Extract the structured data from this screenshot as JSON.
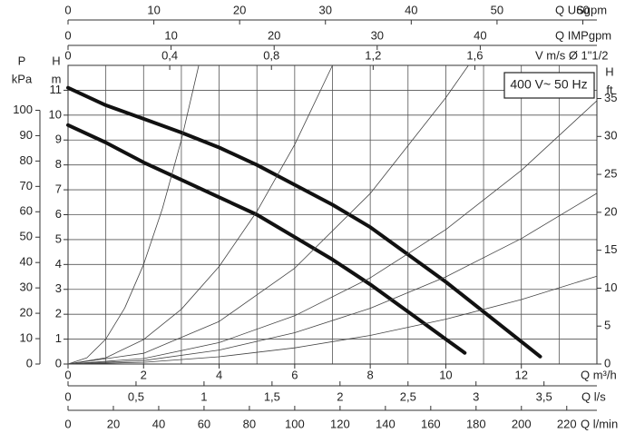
{
  "chart_data": {
    "type": "line",
    "annotation": "400 V~ 50 Hz",
    "grid": true,
    "grid_x": [
      0,
      1,
      2,
      3,
      4,
      5,
      6,
      7,
      8,
      9,
      10,
      11,
      12,
      13,
      14
    ],
    "grid_y": [
      0,
      1,
      2,
      3,
      4,
      5,
      6,
      7,
      8,
      9,
      10,
      11
    ],
    "x_axes": [
      {
        "label": "Q m³/h",
        "xlim": [
          0,
          14
        ],
        "xticks": [
          0,
          2,
          4,
          6,
          8,
          10,
          12
        ]
      },
      {
        "label": "Q l/s",
        "xlim": [
          0,
          3.889
        ],
        "xticks": [
          0,
          {
            "value": 0.5,
            "label": "0,5"
          },
          1,
          {
            "value": 1.5,
            "label": "1,5"
          },
          2,
          {
            "value": 2.5,
            "label": "2,5"
          },
          3,
          {
            "value": 3.5,
            "label": "3,5"
          }
        ]
      },
      {
        "label": "Q l/min",
        "xlim": [
          0,
          233.3
        ],
        "xticks": [
          0,
          20,
          40,
          60,
          80,
          100,
          120,
          140,
          160,
          180,
          200,
          220
        ]
      },
      {
        "label": "Q USgpm",
        "xlim": [
          0,
          61.64
        ],
        "xticks": [
          0,
          10,
          20,
          30,
          40,
          50,
          60
        ]
      },
      {
        "label": "Q IMPgpm",
        "xlim": [
          0,
          51.32
        ],
        "xticks": [
          0,
          10,
          20,
          30,
          40
        ]
      },
      {
        "label": "V m/s Ø 1\"1/2",
        "xlim": [
          0,
          2.08
        ],
        "xticks": [
          0,
          {
            "value": 0.4,
            "label": "0,4"
          },
          {
            "value": 0.8,
            "label": "0,8"
          },
          {
            "value": 1.2,
            "label": "1,2"
          },
          {
            "value": 1.6,
            "label": "1,6"
          }
        ]
      }
    ],
    "y_axes": [
      {
        "label": [
          "H",
          "m"
        ],
        "ylim": [
          0,
          12
        ],
        "yticks": [
          0,
          1,
          2,
          3,
          4,
          5,
          6,
          7,
          8,
          9,
          10,
          11
        ]
      },
      {
        "label": [
          "P",
          "kPa"
        ],
        "ylim": [
          0,
          117.7
        ],
        "yticks": [
          0,
          10,
          20,
          30,
          40,
          50,
          60,
          70,
          80,
          90,
          100
        ]
      },
      {
        "label": [
          "H",
          "ft"
        ],
        "ylim": [
          0,
          39.37
        ],
        "yticks": [
          0,
          5,
          10,
          15,
          20,
          25,
          30,
          35
        ]
      }
    ],
    "series": [
      {
        "color": "#111111",
        "width": 4,
        "x": [
          0,
          1,
          2,
          3,
          4,
          5,
          6,
          7,
          8,
          9,
          10,
          11,
          12,
          12.5
        ],
        "values": [
          11.1,
          10.4,
          9.85,
          9.3,
          8.7,
          8.0,
          7.2,
          6.4,
          5.5,
          4.4,
          3.3,
          2.1,
          0.9,
          0.3
        ]
      },
      {
        "color": "#111111",
        "width": 4,
        "x": [
          0,
          1,
          2,
          3,
          4,
          5,
          6,
          7,
          8,
          9,
          10,
          10.5
        ],
        "values": [
          9.6,
          8.9,
          8.1,
          7.4,
          6.7,
          6.0,
          5.1,
          4.2,
          3.2,
          2.1,
          1.0,
          0.45
        ]
      },
      {
        "color": "#444444",
        "width": 0.8,
        "x": [
          0,
          0.5,
          1,
          1.5,
          2,
          2.5,
          3,
          3.46
        ],
        "values": [
          0,
          0.25,
          1,
          2.25,
          4,
          6.25,
          9,
          12
        ]
      },
      {
        "color": "#444444",
        "width": 0.8,
        "x": [
          0,
          1,
          2,
          3,
          4,
          5,
          6,
          7
        ],
        "values": [
          0,
          0.25,
          0.98,
          2.2,
          3.92,
          6.13,
          8.82,
          12
        ]
      },
      {
        "color": "#444444",
        "width": 0.8,
        "x": [
          0,
          2,
          4,
          6,
          8,
          10,
          10.6
        ],
        "values": [
          0,
          0.43,
          1.71,
          3.85,
          6.85,
          10.7,
          12
        ]
      },
      {
        "color": "#444444",
        "width": 0.8,
        "x": [
          0,
          2,
          4,
          6,
          8,
          10,
          12,
          14
        ],
        "values": [
          0,
          0.22,
          0.86,
          1.94,
          3.46,
          5.4,
          7.78,
          10.58
        ]
      },
      {
        "color": "#444444",
        "width": 0.8,
        "x": [
          0,
          2,
          4,
          6,
          8,
          10,
          12,
          14
        ],
        "values": [
          0,
          0.14,
          0.56,
          1.26,
          2.24,
          3.5,
          5.04,
          6.86
        ]
      },
      {
        "color": "#444444",
        "width": 0.8,
        "x": [
          0,
          2,
          4,
          6,
          8,
          10,
          12,
          14
        ],
        "values": [
          0,
          0.07,
          0.29,
          0.65,
          1.15,
          1.8,
          2.59,
          3.53
        ]
      }
    ]
  }
}
